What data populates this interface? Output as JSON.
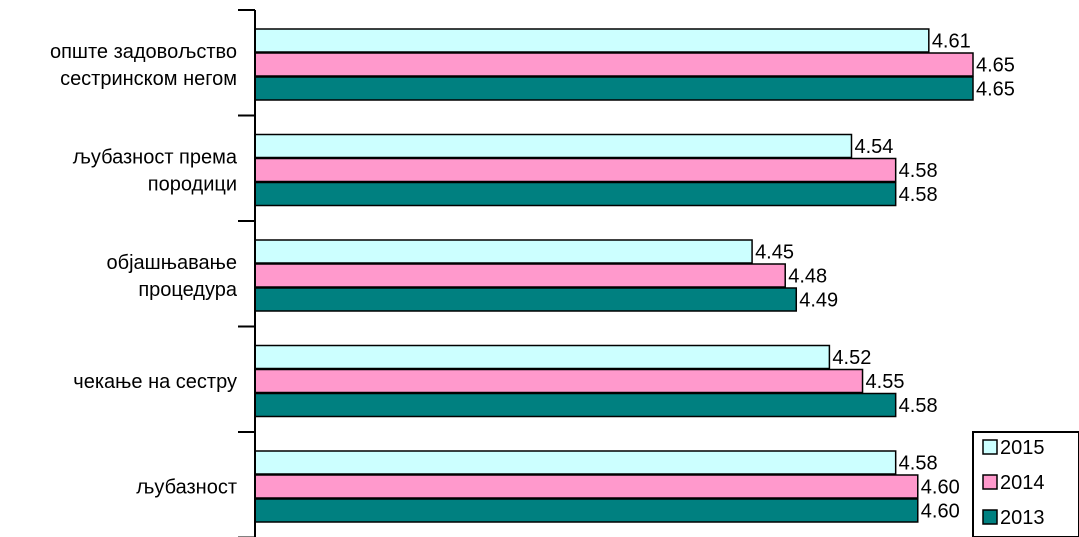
{
  "chart_data": {
    "type": "bar",
    "orientation": "horizontal",
    "categories": [
      [
        "опште задовољство",
        "сестринском негом"
      ],
      [
        "љубазност према",
        "породици"
      ],
      [
        "објашњавање",
        "процедура"
      ],
      [
        "чекање на сестру"
      ],
      [
        "љубазност"
      ]
    ],
    "series": [
      {
        "name": "2015",
        "color": "#CCFFFF",
        "values": [
          4.61,
          4.54,
          4.45,
          4.52,
          4.58
        ]
      },
      {
        "name": "2014",
        "color": "#FF99CC",
        "values": [
          4.65,
          4.58,
          4.48,
          4.55,
          4.6
        ]
      },
      {
        "name": "2013",
        "color": "#008080",
        "values": [
          4.65,
          4.58,
          4.49,
          4.58,
          4.6
        ]
      }
    ],
    "value_labels": [
      [
        "4.61",
        "4.54",
        "4.45",
        "4.52",
        "4.58"
      ],
      [
        "4.65",
        "4.58",
        "4.48",
        "4.55",
        "4.60"
      ],
      [
        "4.65",
        "4.58",
        "4.49",
        "4.58",
        "4.60"
      ]
    ],
    "xlim": [
      4.0,
      4.7
    ],
    "x_axis_visible": false,
    "grid": false,
    "legend_position": "bottom-right",
    "title": "",
    "xlabel": "",
    "ylabel": ""
  }
}
